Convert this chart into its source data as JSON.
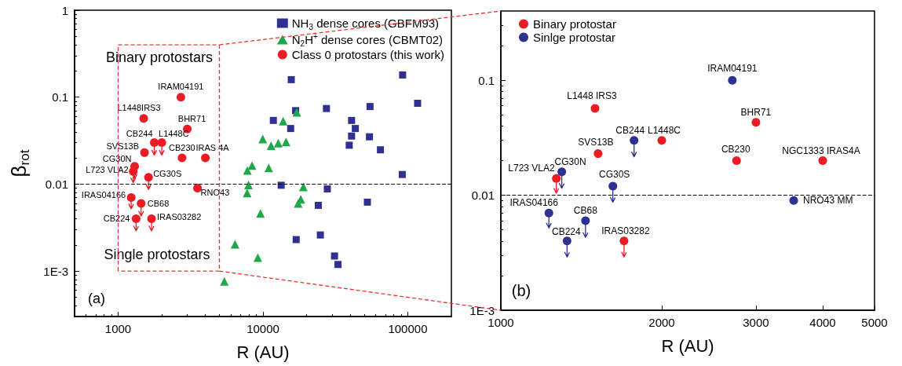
{
  "chart_data": [
    {
      "type": "scatter",
      "xlabel": "R (AU)",
      "ylabel": "β$_{rot}$",
      "log": "xy",
      "xlim": [
        500,
        200000
      ],
      "xticks": [
        1000,
        10000,
        100000
      ],
      "ylim": [
        0.0003,
        1
      ],
      "yticks": [
        {
          "value": 0.001,
          "label": "1E-3"
        },
        0.01,
        0.1,
        1
      ],
      "legend": "top right",
      "ref_lines": [
        {
          "axis": "y",
          "value": 0.01,
          "color": "#000000",
          "line_style": "dashed"
        }
      ],
      "annotations": [
        "Binary protostars",
        "Single protostars",
        "(a)",
        {
          "text": "IRAM04191",
          "x": 2710,
          "y": 0.1
        },
        {
          "text": "L1448IRS3",
          "x": 1500,
          "y": 0.057
        },
        {
          "text": "BHR71",
          "x": 3000,
          "y": 0.043
        },
        {
          "text": "CB244",
          "x": 1775,
          "y": 0.03
        },
        {
          "text": "L1448C",
          "x": 2000,
          "y": 0.03
        },
        {
          "text": "SVS13B",
          "x": 1520,
          "y": 0.023
        },
        {
          "text": "CB230",
          "x": 2760,
          "y": 0.02
        },
        {
          "text": "IRAS 4A",
          "x": 4000,
          "y": 0.02
        },
        {
          "text": "CG30N",
          "x": 1300,
          "y": 0.016
        },
        {
          "text": "L723 VLA2",
          "x": 1270,
          "y": 0.014
        },
        {
          "text": "CG30S",
          "x": 1620,
          "y": 0.012
        },
        {
          "text": "RNO43",
          "x": 3530,
          "y": 0.009
        },
        {
          "text": "IRAS04166",
          "x": 1230,
          "y": 0.007
        },
        {
          "text": "CB68",
          "x": 1440,
          "y": 0.006
        },
        {
          "text": "CB224",
          "x": 1330,
          "y": 0.004
        },
        {
          "text": "IRAS03282",
          "x": 1700,
          "y": 0.004
        }
      ],
      "series": [
        {
          "name": "NH$_{3}$ dense cores (GBFM93)",
          "color": "#2e3192",
          "marker": "square",
          "x": [
            15680,
            92100,
            116900,
            16800,
            27420,
            54830,
            11790,
            40900,
            15530,
            43400,
            40900,
            54350,
            39400,
            64700,
            91600,
            13350,
            27820,
            24110,
            52600,
            16950,
            24900,
            31190,
            32960
          ],
          "values": [
            0.159,
            0.18,
            0.085,
            0.07,
            0.074,
            0.078,
            0.054,
            0.054,
            0.0436,
            0.0436,
            0.0357,
            0.035,
            0.028,
            0.0248,
            0.0129,
            0.0097,
            0.0088,
            0.0057,
            0.0062,
            0.0023,
            0.0026,
            0.00149,
            0.00119
          ]
        },
        {
          "name": "N$_{2}$H$^{+}$ dense cores (CBMT02)",
          "color": "#1fa84a",
          "marker": "triangle",
          "x": [
            17100,
            13780,
            9960,
            11370,
            12750,
            14430,
            8400,
            7800,
            10960,
            7940,
            7770,
            19010,
            18240,
            17500,
            9600,
            6410,
            9210,
            5410
          ],
          "values": [
            0.067,
            0.053,
            0.033,
            0.0276,
            0.0296,
            0.0305,
            0.0164,
            0.0144,
            0.0154,
            0.0098,
            0.0079,
            0.0093,
            0.0067,
            0.006,
            0.0046,
            0.00203,
            0.00143,
            0.00076
          ]
        },
        {
          "name": "Class 0 protostars (this work)",
          "color": "#ed1c24",
          "marker": "circle",
          "x": [
            2710,
            1500,
            3000,
            1775,
            2000,
            1520,
            2760,
            4000,
            1300,
            1270,
            1620,
            3530,
            1230,
            1440,
            1330,
            1700
          ],
          "values": [
            0.1,
            0.057,
            0.043,
            0.03,
            0.03,
            0.023,
            0.02,
            0.02,
            0.016,
            0.014,
            0.012,
            0.009,
            0.007,
            0.006,
            0.004,
            0.004
          ],
          "errors": [
            null,
            null,
            null,
            [
              0.0216,
              0.03
            ],
            [
              0.0216,
              0.03
            ],
            null,
            null,
            null,
            [
              0.0115,
              0.016
            ],
            [
              0.0104,
              0.014
            ],
            [
              0.0087,
              0.012
            ],
            null,
            [
              0.0052,
              0.007
            ],
            [
              0.0043,
              0.006
            ],
            [
              0.0029,
              0.004
            ],
            [
              0.0029,
              0.004
            ]
          ]
        }
      ]
    },
    {
      "type": "scatter",
      "xlabel": "R (AU)",
      "log": "xy",
      "xlim": [
        1000,
        5000
      ],
      "xticks": [
        1000,
        2000,
        3000,
        4000,
        5000
      ],
      "ylim": [
        0.001,
        0.4
      ],
      "yticks": [
        {
          "value": 0.001,
          "label": "1E-3"
        },
        0.01,
        0.1
      ],
      "legend": "top left",
      "ref_lines": [
        {
          "axis": "y",
          "value": 0.01,
          "color": "#000000",
          "line_style": "dashed"
        }
      ],
      "annotations": [
        "(b)",
        {
          "text": "IRAM04191",
          "x": 2710,
          "y": 0.1
        },
        {
          "text": "L1448 IRS3",
          "x": 1500,
          "y": 0.057
        },
        {
          "text": "BHR71",
          "x": 3000,
          "y": 0.043
        },
        {
          "text": "CB244",
          "x": 1775,
          "y": 0.03
        },
        {
          "text": "L1448C",
          "x": 2000,
          "y": 0.03
        },
        {
          "text": "SVS13B",
          "x": 1520,
          "y": 0.023
        },
        {
          "text": "CB230",
          "x": 2760,
          "y": 0.02
        },
        {
          "text": "NGC1333 IRAS4A",
          "x": 4000,
          "y": 0.02
        },
        {
          "text": "L723 VLA2",
          "x": 1270,
          "y": 0.014
        },
        {
          "text": "CG30N",
          "x": 1300,
          "y": 0.016
        },
        {
          "text": "CG30S",
          "x": 1620,
          "y": 0.012
        },
        {
          "text": "NRO43 MM",
          "x": 3530,
          "y": 0.009
        },
        {
          "text": "IRAS04166",
          "x": 1230,
          "y": 0.007
        },
        {
          "text": "CB68",
          "x": 1440,
          "y": 0.006
        },
        {
          "text": "CB224",
          "x": 1330,
          "y": 0.004
        },
        {
          "text": "IRAS03282",
          "x": 1700,
          "y": 0.004
        }
      ],
      "series": [
        {
          "name": "Binary protostar",
          "color": "#ed1c24",
          "marker": "circle",
          "x": [
            1500,
            1520,
            2000,
            3000,
            2760,
            4000,
            1270,
            1700
          ],
          "values": [
            0.057,
            0.023,
            0.03,
            0.043,
            0.02,
            0.02,
            0.014,
            0.004
          ],
          "errors": [
            null,
            null,
            null,
            null,
            null,
            null,
            [
              0.0104,
              0.014
            ],
            [
              0.0029,
              0.004
            ]
          ]
        },
        {
          "name": "Sinlge protostar",
          "color": "#2e3192",
          "marker": "circle",
          "x": [
            2710,
            1775,
            1300,
            1620,
            3530,
            1230,
            1440,
            1330
          ],
          "values": [
            0.1,
            0.03,
            0.016,
            0.012,
            0.009,
            0.007,
            0.006,
            0.004
          ],
          "errors": [
            null,
            [
              0.0216,
              0.03
            ],
            [
              0.0115,
              0.016
            ],
            [
              0.0087,
              0.012
            ],
            null,
            [
              0.0052,
              0.007
            ],
            [
              0.0043,
              0.006
            ],
            [
              0.0029,
              0.004
            ]
          ]
        }
      ]
    }
  ]
}
